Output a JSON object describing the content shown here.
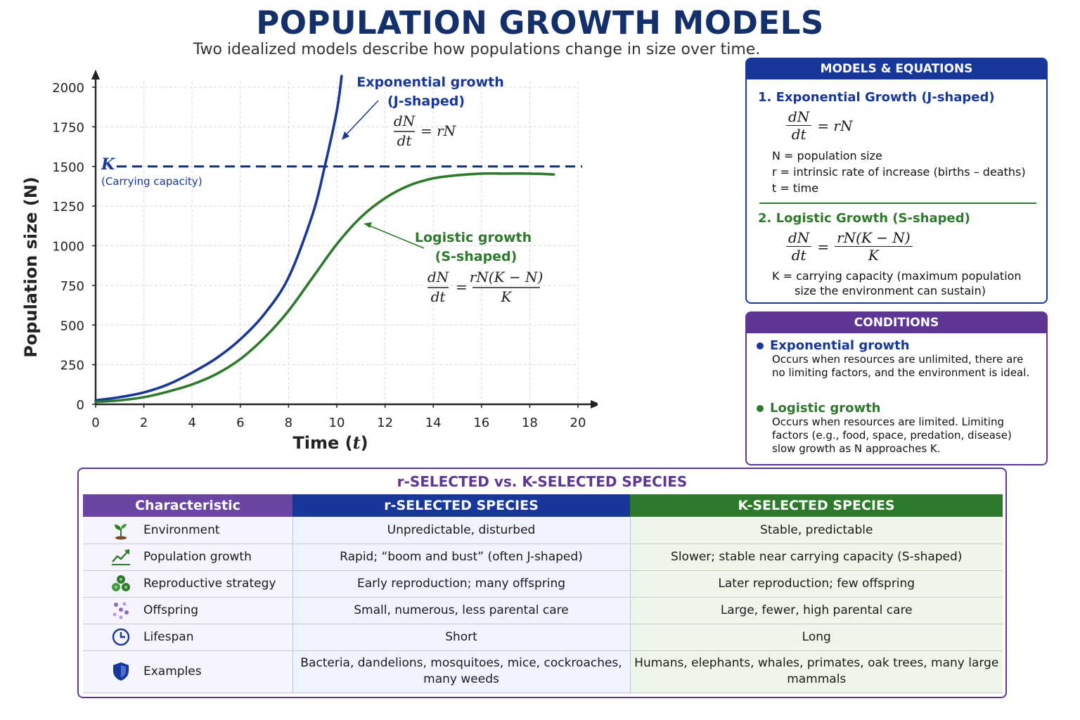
{
  "title": "POPULATION GROWTH MODELS",
  "subtitle": "Two idealized models describe how populations change in size over time.",
  "colors": {
    "blue": "#17379a",
    "green": "#2e7a2c",
    "purple": "#5e3796",
    "title": "#14306b"
  },
  "chart_data": {
    "type": "line",
    "xlabel_main": "Time (",
    "xlabel_var": "t",
    "xlabel_close": ")",
    "ylabel": "Population size (N)",
    "xlim": [
      0,
      20
    ],
    "ylim": [
      0,
      2000
    ],
    "x_ticks": [
      0,
      2,
      4,
      6,
      8,
      10,
      12,
      14,
      16,
      18,
      20
    ],
    "y_ticks": [
      0,
      250,
      500,
      750,
      1000,
      1250,
      1500,
      1750,
      2000
    ],
    "grid": true,
    "carrying_capacity": {
      "value": 1500,
      "label": "K",
      "sublabel": "(Carrying capacity)"
    },
    "series": [
      {
        "name": "Exponential growth",
        "subname": "(J-shaped)",
        "color": "#17379a",
        "x": [
          0,
          1,
          2,
          3,
          4,
          5,
          6,
          7,
          8,
          9,
          9.5,
          10,
          10.2
        ],
        "y": [
          25,
          45,
          75,
          125,
          200,
          290,
          410,
          570,
          800,
          1200,
          1500,
          1850,
          2070
        ]
      },
      {
        "name": "Logistic growth",
        "subname": "(S-shaped)",
        "color": "#2e7a2c",
        "x": [
          0,
          1,
          2,
          3,
          4,
          5,
          6,
          7,
          8,
          9,
          10,
          11,
          12,
          13,
          14,
          15,
          16,
          17,
          18,
          19
        ],
        "y": [
          15,
          25,
          45,
          80,
          125,
          190,
          285,
          420,
          590,
          800,
          1010,
          1180,
          1300,
          1380,
          1425,
          1445,
          1455,
          1455,
          1455,
          1450
        ]
      }
    ],
    "annotations": {
      "exp_eq_num": "dN",
      "exp_eq_den": "dt",
      "exp_eq_rhs": "= rN",
      "log_eq_num": "dN",
      "log_eq_den": "dt",
      "log_eq_eq": "=",
      "log_eq_rnum": "rN(K − N)",
      "log_eq_rden": "K"
    }
  },
  "models": {
    "header": "MODELS & EQUATIONS",
    "exp_title": "1. Exponential Growth (J-shaped)",
    "exp_num": "dN",
    "exp_den": "dt",
    "exp_rhs": "= rN",
    "exp_defs": [
      "N = population size",
      "r = intrinsic rate of increase (births – deaths)",
      "t = time"
    ],
    "log_title": "2. Logistic Growth (S-shaped)",
    "log_num": "dN",
    "log_den": "dt",
    "log_eq": "=",
    "log_rnum": "rN(K − N)",
    "log_rden": "K",
    "log_def_1": "K = carrying capacity (maximum population",
    "log_def_2": "size the environment can sustain)"
  },
  "conditions": {
    "header": "CONDITIONS",
    "exp_title": "Exponential growth",
    "exp_body": "Occurs when resources are unlimited, there are no limiting factors, and the environment is ideal.",
    "log_title": "Logistic growth",
    "log_body": "Occurs when resources are limited. Limiting factors (e.g., food, space, predation, disease) slow growth as N approaches K."
  },
  "rk": {
    "title": "r-SELECTED vs. K-SELECTED SPECIES",
    "headers": [
      "Characteristic",
      "r-SELECTED SPECIES",
      "K-SELECTED SPECIES"
    ],
    "rows": [
      {
        "icon": "sprout-icon",
        "label": "Environment",
        "r": "Unpredictable, disturbed",
        "k": "Stable, predictable"
      },
      {
        "icon": "trend-up-icon",
        "label": "Population growth",
        "r": "Rapid; “boom and bust” (often J-shaped)",
        "k": "Slower; stable near carrying capacity (S-shaped)"
      },
      {
        "icon": "cluster-icon",
        "label": "Reproductive strategy",
        "r": "Early reproduction; many offspring",
        "k": "Later reproduction; few offspring"
      },
      {
        "icon": "dots-icon",
        "label": "Offspring",
        "r": "Small, numerous, less parental care",
        "k": "Large, fewer, high parental care"
      },
      {
        "icon": "clock-icon",
        "label": "Lifespan",
        "r": "Short",
        "k": "Long"
      },
      {
        "icon": "shield-icon",
        "label": "Examples",
        "r": "Bacteria, dandelions, mosquitoes, mice, cockroaches, many weeds",
        "k": "Humans, elephants, whales, primates, oak trees, many large mammals"
      }
    ]
  }
}
